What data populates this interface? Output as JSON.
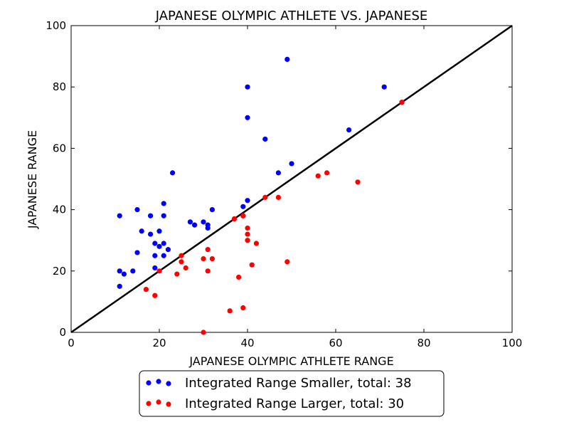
{
  "chart_data": {
    "type": "scatter",
    "title": "JAPANESE OLYMPIC ATHLETE VS. JAPANESE",
    "xlabel": "JAPANESE OLYMPIC ATHLETE RANGE",
    "ylabel": "JAPANESE RANGE",
    "xlim": [
      0,
      100
    ],
    "ylim": [
      0,
      100
    ],
    "xticks": [
      "0",
      "20",
      "40",
      "60",
      "80",
      "100"
    ],
    "yticks": [
      "0",
      "20",
      "40",
      "60",
      "80",
      "100"
    ],
    "grid": false,
    "legend_position": "below",
    "reference_line": {
      "x": [
        0,
        100
      ],
      "y": [
        0,
        100
      ],
      "color": "#000000"
    },
    "series": [
      {
        "name": "Integrated Range Smaller, total: 38",
        "color": "#0000ff",
        "points": [
          [
            11,
            38
          ],
          [
            11,
            20
          ],
          [
            11,
            15
          ],
          [
            12,
            19
          ],
          [
            14,
            20
          ],
          [
            15,
            40
          ],
          [
            15,
            26
          ],
          [
            16,
            33
          ],
          [
            18,
            38
          ],
          [
            18,
            32
          ],
          [
            19,
            29
          ],
          [
            19,
            25
          ],
          [
            19,
            21
          ],
          [
            20,
            33
          ],
          [
            20,
            28
          ],
          [
            21,
            42
          ],
          [
            21,
            38
          ],
          [
            21,
            29
          ],
          [
            21,
            25
          ],
          [
            22,
            27
          ],
          [
            23,
            52
          ],
          [
            27,
            36
          ],
          [
            28,
            35
          ],
          [
            30,
            36
          ],
          [
            31,
            35
          ],
          [
            31,
            34
          ],
          [
            32,
            40
          ],
          [
            39,
            41
          ],
          [
            40,
            43
          ],
          [
            40,
            80
          ],
          [
            40,
            70
          ],
          [
            44,
            63
          ],
          [
            47,
            52
          ],
          [
            49,
            89
          ],
          [
            50,
            55
          ],
          [
            63,
            66
          ],
          [
            71,
            80
          ],
          [
            75,
            75
          ]
        ]
      },
      {
        "name": "Integrated Range Larger, total: 30",
        "color": "#ff0000",
        "points": [
          [
            17,
            14
          ],
          [
            19,
            12
          ],
          [
            20,
            20
          ],
          [
            24,
            19
          ],
          [
            25,
            25
          ],
          [
            25,
            23
          ],
          [
            26,
            21
          ],
          [
            30,
            24
          ],
          [
            30,
            0
          ],
          [
            31,
            27
          ],
          [
            31,
            20
          ],
          [
            32,
            24
          ],
          [
            36,
            7
          ],
          [
            37,
            37
          ],
          [
            38,
            18
          ],
          [
            39,
            38
          ],
          [
            39,
            8
          ],
          [
            40,
            34
          ],
          [
            40,
            32
          ],
          [
            40,
            30
          ],
          [
            41,
            22
          ],
          [
            42,
            29
          ],
          [
            44,
            44
          ],
          [
            47,
            44
          ],
          [
            49,
            23
          ],
          [
            56,
            51
          ],
          [
            58,
            52
          ],
          [
            65,
            49
          ],
          [
            75,
            75
          ],
          [
            39,
            38
          ]
        ]
      }
    ]
  }
}
